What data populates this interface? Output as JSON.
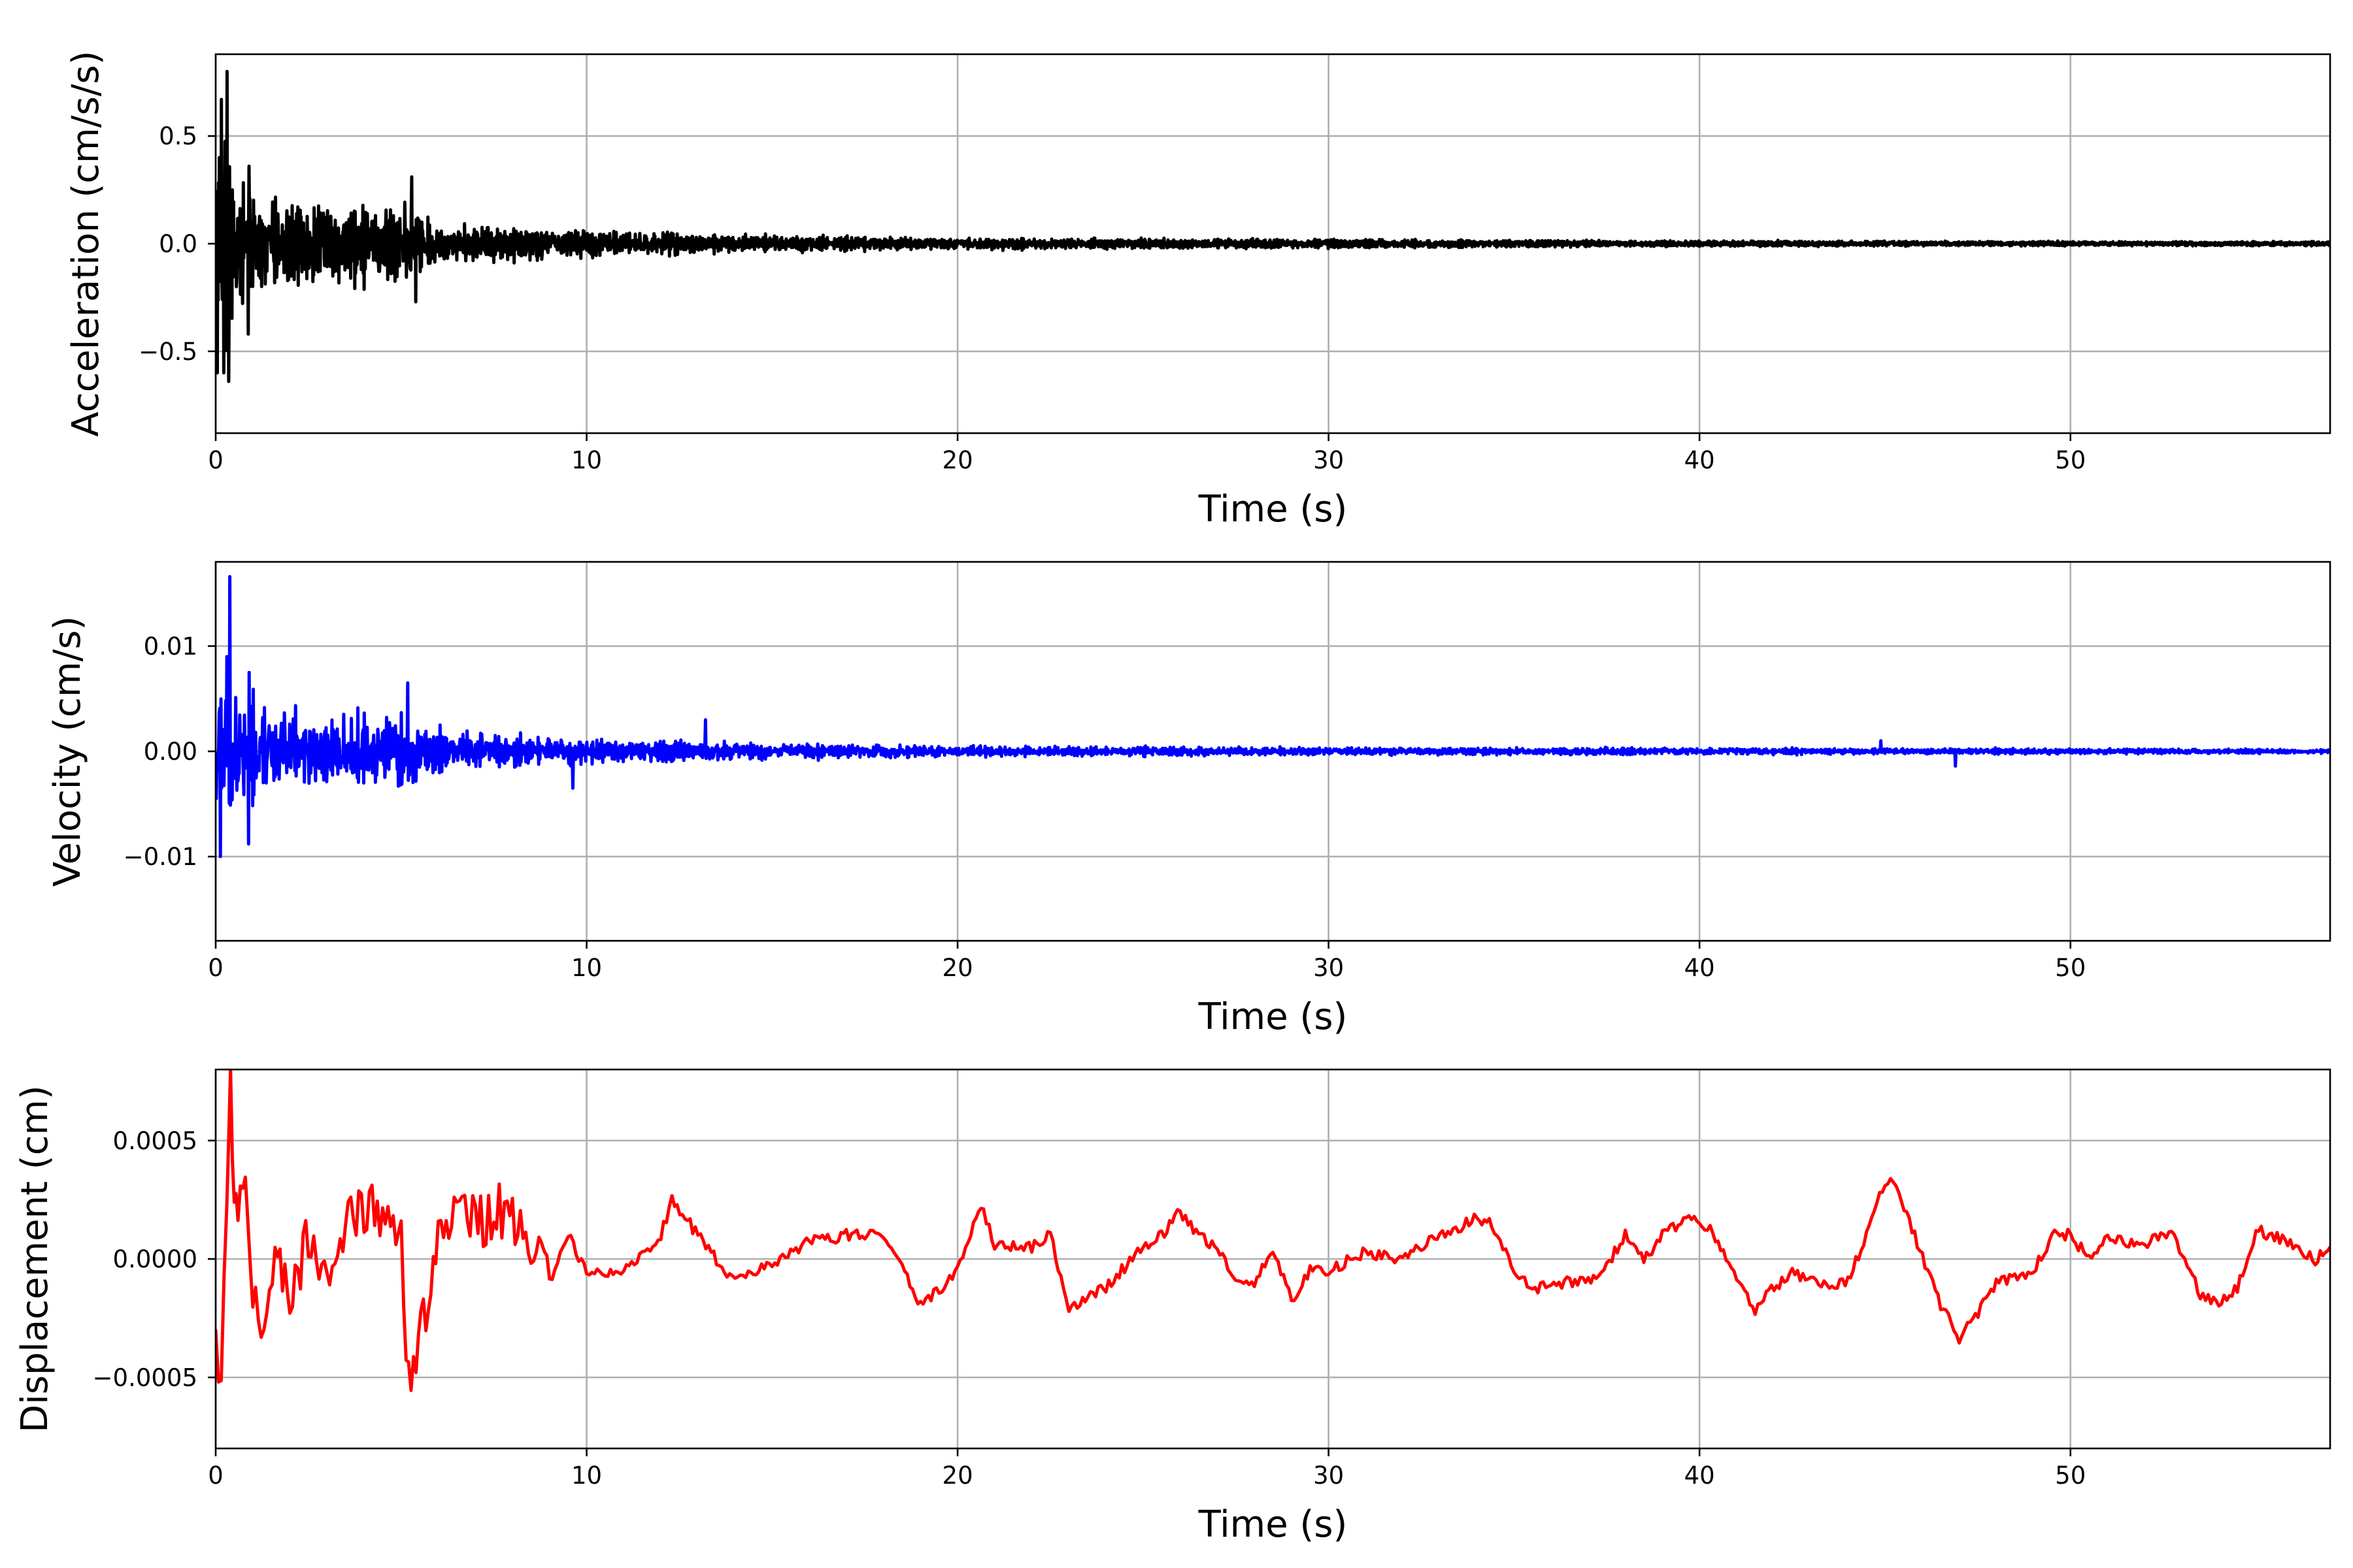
{
  "chart_data": [
    {
      "type": "line",
      "xlabel": "Time (s)",
      "ylabel": "Acceleration (cm/s/s)",
      "xlim": [
        0,
        57
      ],
      "ylim": [
        -0.88,
        0.88
      ],
      "xticks": [
        0,
        10,
        20,
        30,
        40,
        50
      ],
      "xtick_labels": [
        "0",
        "10",
        "20",
        "30",
        "40",
        "50"
      ],
      "yticks": [
        -0.5,
        0.0,
        0.5
      ],
      "ytick_labels": [
        "−0.5",
        "0.0",
        "0.5"
      ],
      "grid": true,
      "series": [
        {
          "color": "#000000",
          "envelope": {
            "t": [
              0,
              0.3,
              0.4,
              1,
              2,
              3,
              4,
              5,
              6,
              8,
              10,
              12,
              15,
              18,
              20,
              25,
              30,
              35,
              40,
              45,
              50,
              57
            ],
            "amp": [
              0.6,
              0.8,
              0.62,
              0.36,
              0.28,
              0.27,
              0.27,
              0.3,
              0.15,
              0.12,
              0.1,
              0.08,
              0.06,
              0.045,
              0.04,
              0.035,
              0.03,
              0.025,
              0.02,
              0.018,
              0.016,
              0.015
            ]
          },
          "peaks": [
            {
              "x": 0.05,
              "y": -0.6
            },
            {
              "x": 0.1,
              "y": 0.4
            },
            {
              "x": 0.15,
              "y": 0.67
            },
            {
              "x": 0.22,
              "y": -0.6
            },
            {
              "x": 0.3,
              "y": 0.8
            },
            {
              "x": 0.35,
              "y": -0.64
            },
            {
              "x": 0.45,
              "y": 0.25
            },
            {
              "x": 0.9,
              "y": 0.36
            },
            {
              "x": 0.9,
              "y": -0.42
            },
            {
              "x": 5.3,
              "y": 0.31
            },
            {
              "x": 5.4,
              "y": -0.27
            }
          ]
        }
      ]
    },
    {
      "type": "line",
      "xlabel": "Time (s)",
      "ylabel": "Velocity (cm/s)",
      "xlim": [
        0,
        57
      ],
      "ylim": [
        -0.018,
        0.018
      ],
      "xticks": [
        0,
        10,
        20,
        30,
        40,
        50
      ],
      "xtick_labels": [
        "0",
        "10",
        "20",
        "30",
        "40",
        "50"
      ],
      "yticks": [
        -0.01,
        0.0,
        0.01
      ],
      "ytick_labels": [
        "−0.01",
        "0.00",
        "0.01"
      ],
      "grid": true,
      "series": [
        {
          "color": "#0000ff",
          "envelope": {
            "t": [
              0,
              0.4,
              1,
              2,
              3,
              4,
              5,
              5.5,
              6,
              8,
              10,
              13,
              15,
              20,
              25,
              30,
              35,
              40,
              45,
              50,
              57
            ],
            "amp": [
              0.009,
              0.01,
              0.007,
              0.006,
              0.005,
              0.005,
              0.006,
              0.005,
              0.003,
              0.0022,
              0.0018,
              0.0015,
              0.0012,
              0.0008,
              0.0007,
              0.0006,
              0.0005,
              0.0005,
              0.0004,
              0.0004,
              0.0003
            ]
          },
          "peaks": [
            {
              "x": 0.1,
              "y": -0.01
            },
            {
              "x": 0.3,
              "y": 0.009
            },
            {
              "x": 0.38,
              "y": 0.0166
            },
            {
              "x": 0.9,
              "y": -0.0088
            },
            {
              "x": 0.9,
              "y": 0.0075
            },
            {
              "x": 5.2,
              "y": 0.0065
            },
            {
              "x": 9.6,
              "y": -0.0035
            },
            {
              "x": 13.2,
              "y": 0.003
            },
            {
              "x": 44.9,
              "y": 0.001
            },
            {
              "x": 46.9,
              "y": -0.0014
            }
          ]
        }
      ]
    },
    {
      "type": "line",
      "xlabel": "Time (s)",
      "ylabel": "Displacement (cm)",
      "xlim": [
        0,
        57
      ],
      "ylim": [
        -0.0008,
        0.0008
      ],
      "xticks": [
        0,
        10,
        20,
        30,
        40,
        50
      ],
      "xtick_labels": [
        "0",
        "10",
        "20",
        "30",
        "40",
        "50"
      ],
      "yticks": [
        -0.0005,
        0.0,
        0.0005
      ],
      "ytick_labels": [
        "−0.0005",
        "0.0000",
        "0.0005"
      ],
      "grid": true,
      "series": [
        {
          "color": "#ff0000",
          "x": [
            0,
            0.15,
            0.3,
            0.4,
            0.5,
            0.6,
            0.8,
            1.0,
            1.3,
            1.6,
            2.0,
            2.5,
            3.0,
            3.5,
            4.0,
            4.5,
            5.0,
            5.2,
            5.6,
            6.0,
            6.5,
            7.0,
            7.5,
            8.0,
            8.5,
            9.0,
            9.5,
            10.0,
            11.0,
            12.0,
            12.3,
            13.0,
            14.0,
            15.0,
            16.0,
            17.0,
            18.0,
            18.5,
            19.0,
            19.5,
            20.0,
            20.5,
            20.7,
            21.0,
            22.0,
            22.5,
            23.0,
            23.3,
            24.0,
            25.0,
            25.5,
            26.0,
            26.5,
            27.0,
            27.5,
            28.0,
            28.5,
            29.0,
            29.5,
            30.0,
            31.0,
            32.0,
            33.0,
            34.0,
            34.4,
            35.0,
            35.5,
            36.0,
            37.0,
            37.5,
            38.0,
            38.5,
            39.0,
            39.5,
            40.0,
            40.5,
            41.0,
            41.5,
            41.8,
            42.5,
            43.0,
            44.0,
            44.5,
            45.0,
            45.3,
            45.8,
            46.5,
            47.0,
            47.3,
            48.0,
            49.0,
            49.5,
            50.0,
            50.5,
            51.0,
            52.0,
            52.8,
            53.5,
            54.0,
            54.5,
            55.0,
            55.5,
            56.0,
            56.6,
            57.0
          ],
          "y": [
            -0.0004,
            -0.0005,
            0.0003,
            0.00072,
            0.0002,
            0.0002,
            0.0003,
            -0.0002,
            -0.00035,
            0.0001,
            -0.0002,
            0.00012,
            -0.0001,
            0.00015,
            0.0002,
            0.0002,
            0.0001,
            -0.00055,
            -0.00025,
            0.0001,
            0.0002,
            0.00015,
            0.0002,
            0.0002,
            5e-05,
            -0.0001,
            0.0001,
            -5e-05,
            -5e-05,
            0.0001,
            0.00025,
            0.0001,
            -0.0001,
            -2e-05,
            7e-05,
            0.0001,
            0.0001,
            -3e-05,
            -0.0002,
            -0.00013,
            -5e-05,
            0.00018,
            0.0002,
            5e-05,
            5e-05,
            0.0001,
            -0.0002,
            -0.00018,
            -0.00012,
            5e-05,
            0.0001,
            0.0002,
            0.0001,
            5e-05,
            -0.0001,
            -0.0001,
            5e-05,
            -0.00018,
            -5e-05,
            -5e-05,
            3e-05,
            0.0,
            0.0001,
            0.00017,
            0.00015,
            -5e-05,
            -0.00013,
            -0.0001,
            -0.0001,
            -3e-05,
            0.0001,
            0.0,
            0.0001,
            0.00015,
            0.00017,
            8e-05,
            -0.0001,
            -0.00022,
            -0.00015,
            -5e-05,
            -0.0001,
            -0.0001,
            0.0001,
            0.00033,
            0.0003,
            0.0001,
            -0.0002,
            -0.00033,
            -0.00028,
            -0.0001,
            -5e-05,
            0.0001,
            0.0001,
            0.0,
            8e-05,
            7e-05,
            0.0001,
            -0.00015,
            -0.00018,
            -0.00012,
            0.00012,
            0.0001,
            5e-05,
            0.0,
            5e-05
          ]
        }
      ]
    }
  ]
}
